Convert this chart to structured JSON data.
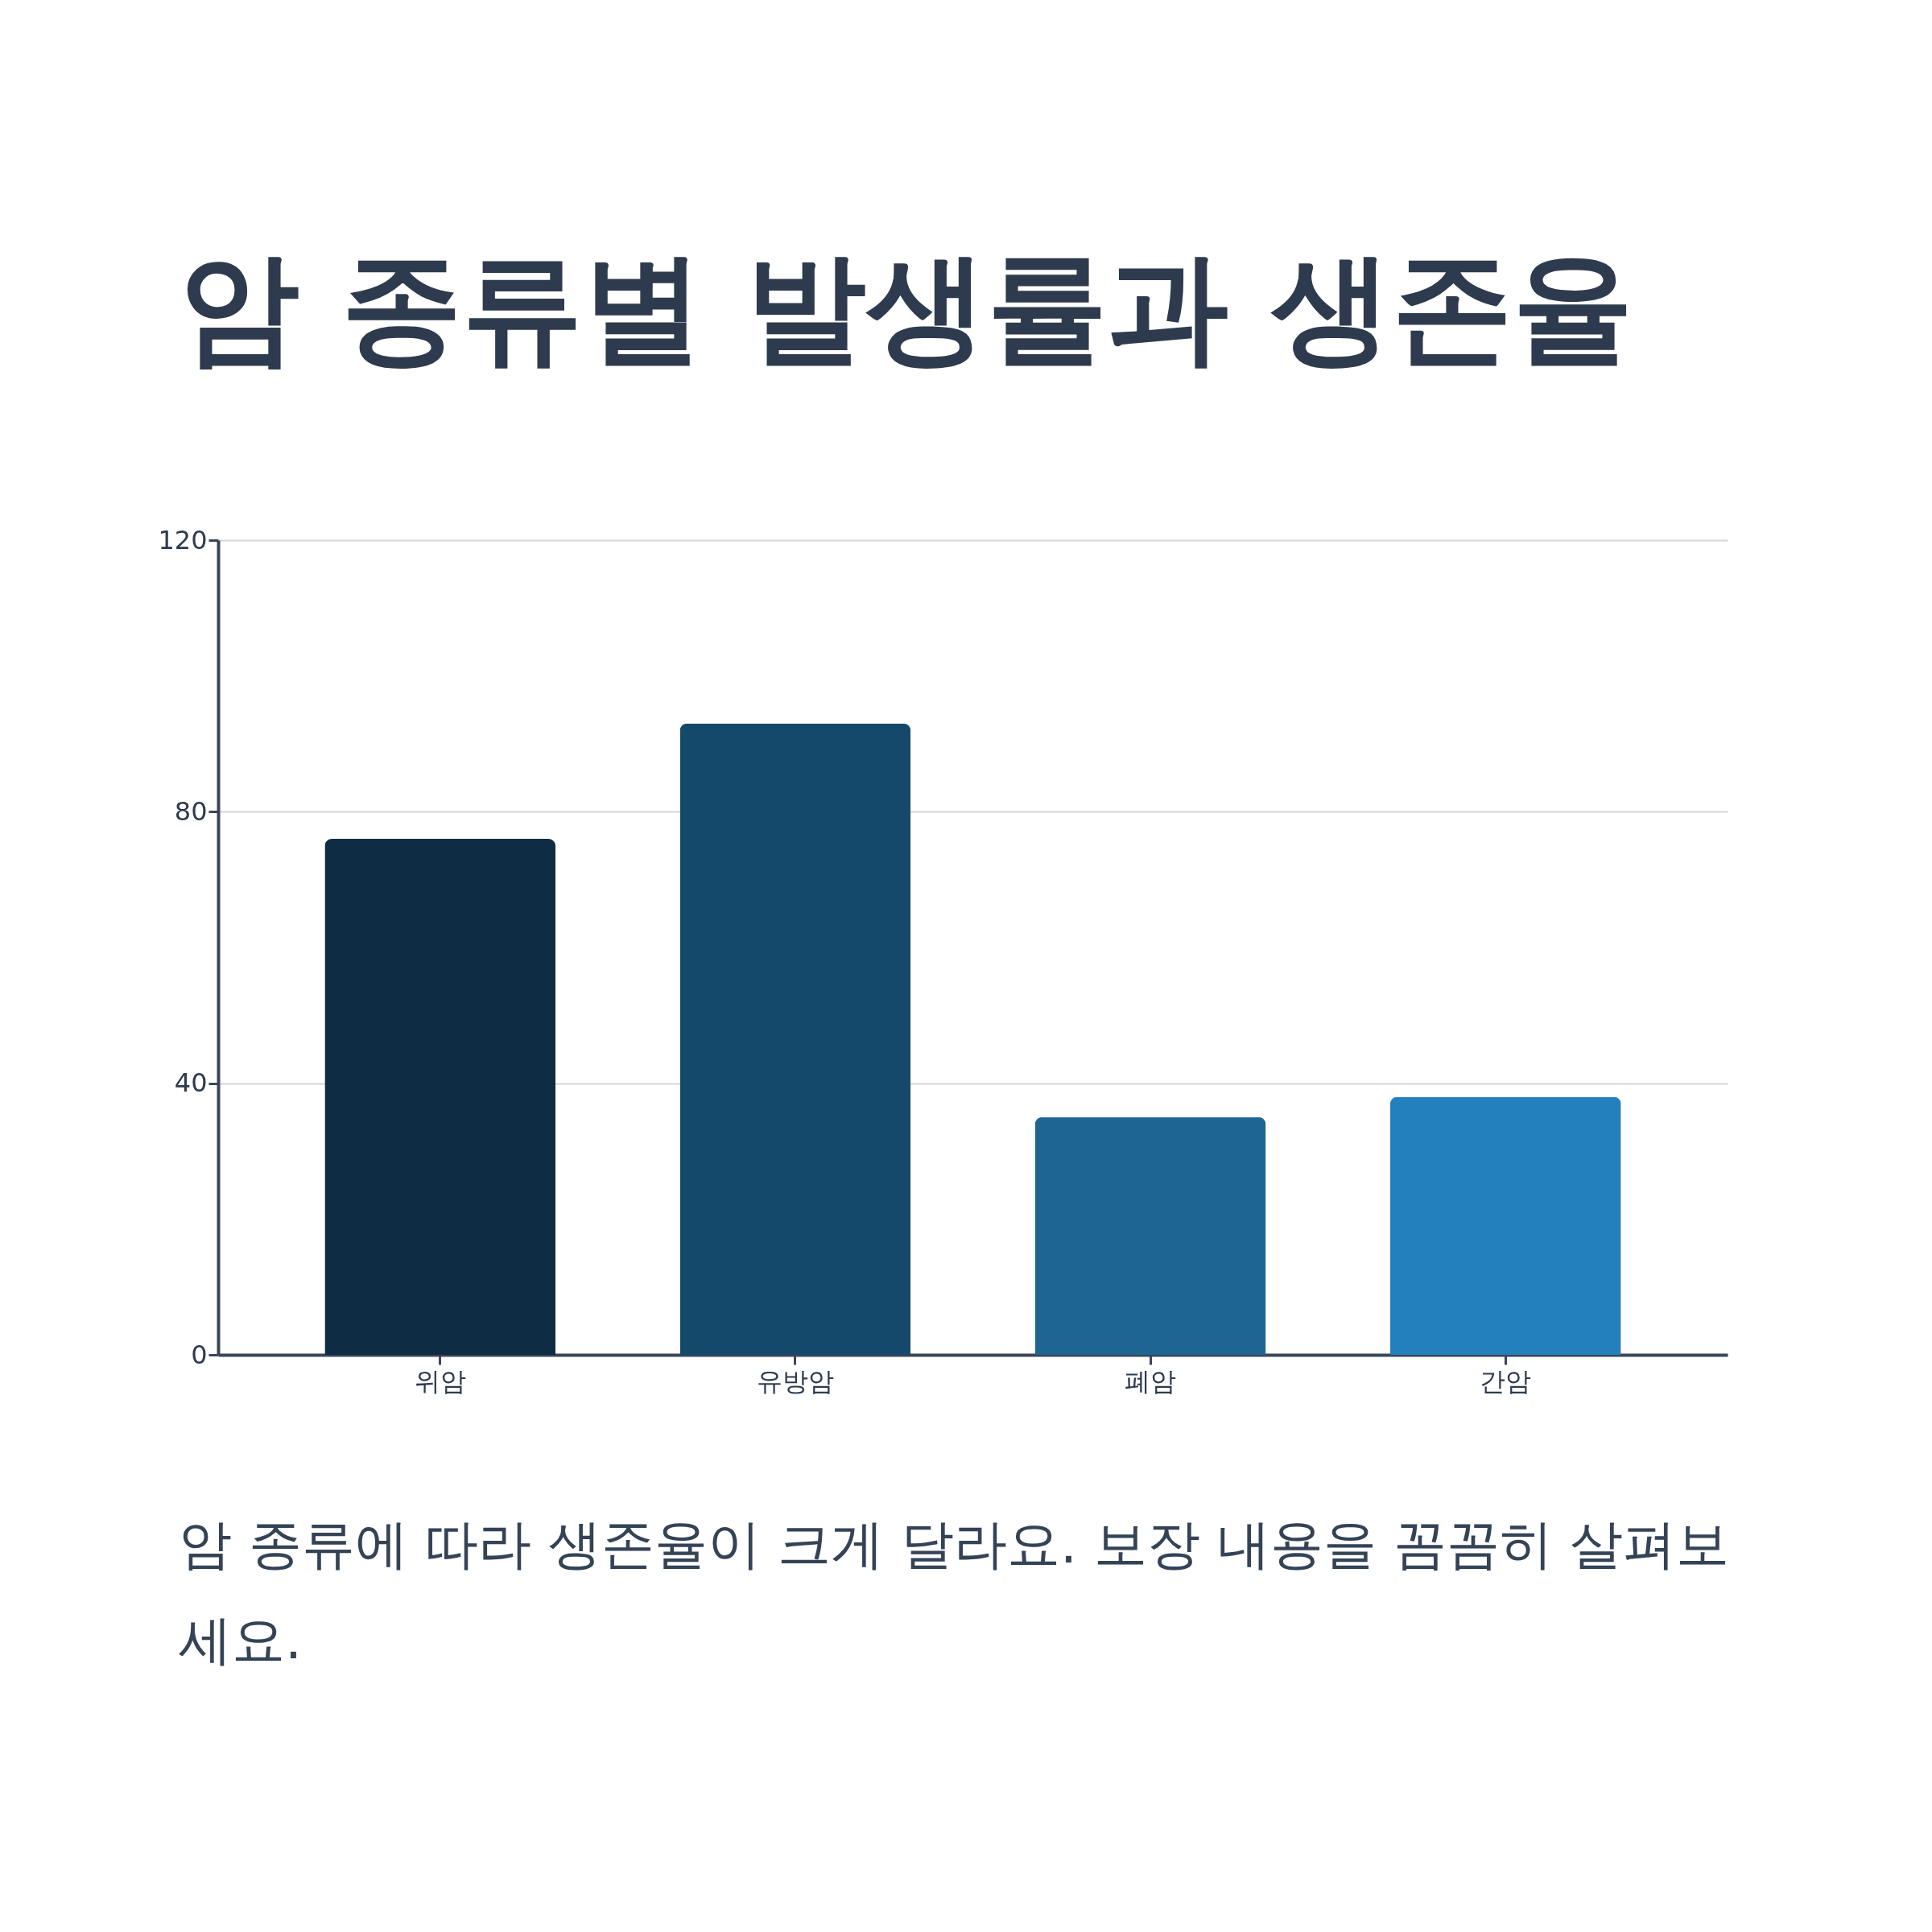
{
  "chart_data": {
    "type": "bar",
    "title": "암 종류별 발생률과 생존율",
    "categories": [
      "위암",
      "유방암",
      "폐암",
      "간암"
    ],
    "values": [
      76,
      93,
      35,
      38
    ],
    "colors": [
      "#0e2c44",
      "#15496b",
      "#1e6594",
      "#2380bd"
    ],
    "ylim": [
      0,
      120
    ],
    "yticks": [
      0,
      40,
      80,
      120
    ],
    "grid": "y",
    "annotations": [
      "암 종류에 따라 생존율이 크게 달라요. 보장 내용을 꼼꼼히 살펴보세요."
    ]
  }
}
